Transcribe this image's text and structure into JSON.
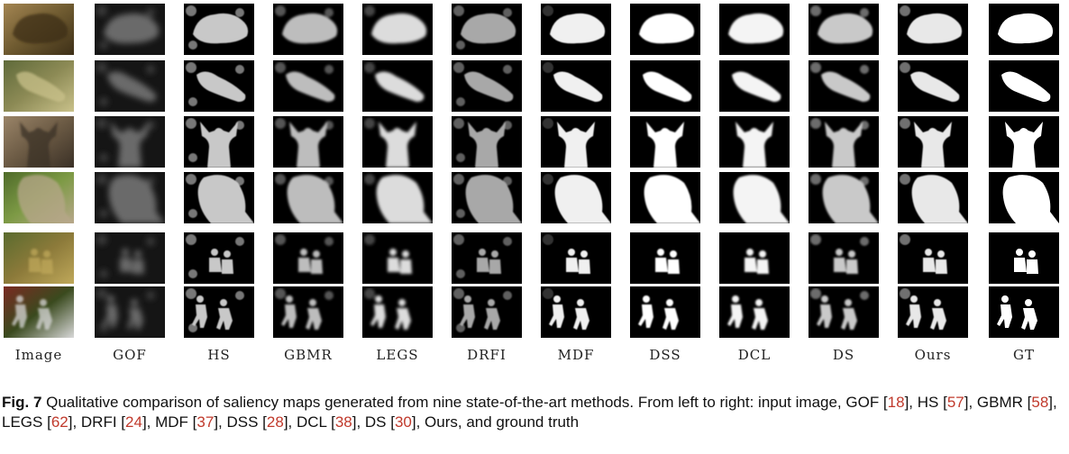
{
  "figure": {
    "columns": [
      "Image",
      "GOF",
      "HS",
      "GBMR",
      "LEGS",
      "DRFI",
      "MDF",
      "DSS",
      "DCL",
      "DS",
      "Ours",
      "GT"
    ],
    "rows": [
      {
        "subject": "frog",
        "photo_colors": [
          "#6e5a30",
          "#a38552",
          "#3d2f17"
        ]
      },
      {
        "subject": "lizard",
        "photo_colors": [
          "#8c8a55",
          "#5f6a3a",
          "#c9c18a"
        ]
      },
      {
        "subject": "deer",
        "photo_colors": [
          "#6b5a44",
          "#9a8468",
          "#3a3026"
        ]
      },
      {
        "subject": "meerkat",
        "photo_colors": [
          "#7d9a45",
          "#4f6b2a",
          "#b7a78a"
        ]
      },
      {
        "subject": "two-men-walking",
        "photo_colors": [
          "#8c7a3a",
          "#5a6b2e",
          "#bfa85a"
        ]
      },
      {
        "subject": "soccer-players",
        "photo_colors": [
          "#3a4a1e",
          "#7a2a22",
          "#d8d8d8"
        ]
      }
    ]
  },
  "caption": {
    "label": "Fig. 7",
    "segments": [
      {
        "text": "  Qualitative comparison of saliency maps generated from nine state-of-the-art methods. From left to right: input image, GOF ["
      },
      {
        "text": "18",
        "ref": true
      },
      {
        "text": "], HS ["
      },
      {
        "text": "57",
        "ref": true
      },
      {
        "text": "], GBMR ["
      },
      {
        "text": "58",
        "ref": true
      },
      {
        "text": "], LEGS ["
      },
      {
        "text": "62",
        "ref": true
      },
      {
        "text": "], DRFI ["
      },
      {
        "text": "24",
        "ref": true
      },
      {
        "text": "], MDF ["
      },
      {
        "text": "37",
        "ref": true
      },
      {
        "text": "], DSS ["
      },
      {
        "text": "28",
        "ref": true
      },
      {
        "text": "], DCL ["
      },
      {
        "text": "38",
        "ref": true
      },
      {
        "text": "], DS ["
      },
      {
        "text": "30",
        "ref": true
      },
      {
        "text": "], Ours, and ground truth"
      }
    ]
  }
}
